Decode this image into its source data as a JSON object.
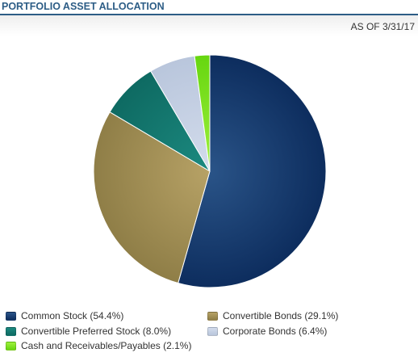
{
  "widget": {
    "title": "PORTFOLIO ASSET ALLOCATION",
    "as_of": "AS OF 3/31/17"
  },
  "colors": {
    "title": "#2d5d86",
    "background": "#ffffff"
  },
  "chart_data": {
    "type": "pie",
    "title": "",
    "start_angle_deg": 0,
    "direction": "clockwise",
    "legend_position": "bottom",
    "slices": [
      {
        "label": "Common Stock (54.4%)",
        "name": "Common Stock",
        "value": 54.4,
        "color": "#0d2d5e",
        "highlight": "#2a5488"
      },
      {
        "label": "Convertible Bonds (29.1%)",
        "name": "Convertible Bonds",
        "value": 29.1,
        "color": "#8f7e47",
        "highlight": "#b7a266"
      },
      {
        "label": "Convertible Preferred Stock (8.0%)",
        "name": "Convertible Preferred Stock",
        "value": 8.0,
        "color": "#0e6a62",
        "highlight": "#1c8a80"
      },
      {
        "label": "Corporate Bonds (6.4%)",
        "name": "Corporate Bonds",
        "value": 6.4,
        "color": "#b9c6dc",
        "highlight": "#d3dcec"
      },
      {
        "label": "Cash and Receivables/Payables (2.1%)",
        "name": "Cash and Receivables/Payables",
        "value": 2.1,
        "color": "#66d60f",
        "highlight": "#9ef03d"
      }
    ],
    "legend_order": [
      0,
      1,
      2,
      3,
      4
    ]
  }
}
